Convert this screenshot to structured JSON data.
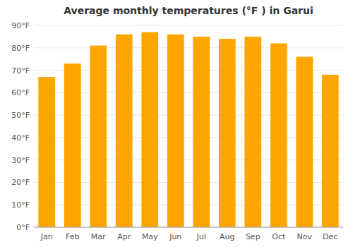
{
  "chart_data": {
    "type": "bar",
    "title": "Average monthly temperatures (°F ) in Garui",
    "categories": [
      "Jan",
      "Feb",
      "Mar",
      "Apr",
      "May",
      "Jun",
      "Jul",
      "Aug",
      "Sep",
      "Oct",
      "Nov",
      "Dec"
    ],
    "values": [
      67,
      73,
      81,
      86,
      87,
      86,
      85,
      84,
      85,
      82,
      76,
      68
    ],
    "color": "#FFA500",
    "ylim": [
      0,
      90
    ],
    "yticks": [
      {
        "value": 0,
        "label": "0°F"
      },
      {
        "value": 10,
        "label": "10°F"
      },
      {
        "value": 20,
        "label": "20°F"
      },
      {
        "value": 30,
        "label": "30°F"
      },
      {
        "value": 40,
        "label": "40°F"
      },
      {
        "value": 50,
        "label": "50°F"
      },
      {
        "value": 60,
        "label": "60°F"
      },
      {
        "value": 70,
        "label": "70°F"
      },
      {
        "value": 80,
        "label": "80°F"
      },
      {
        "value": 90,
        "label": "90°F"
      }
    ],
    "grid": true
  }
}
